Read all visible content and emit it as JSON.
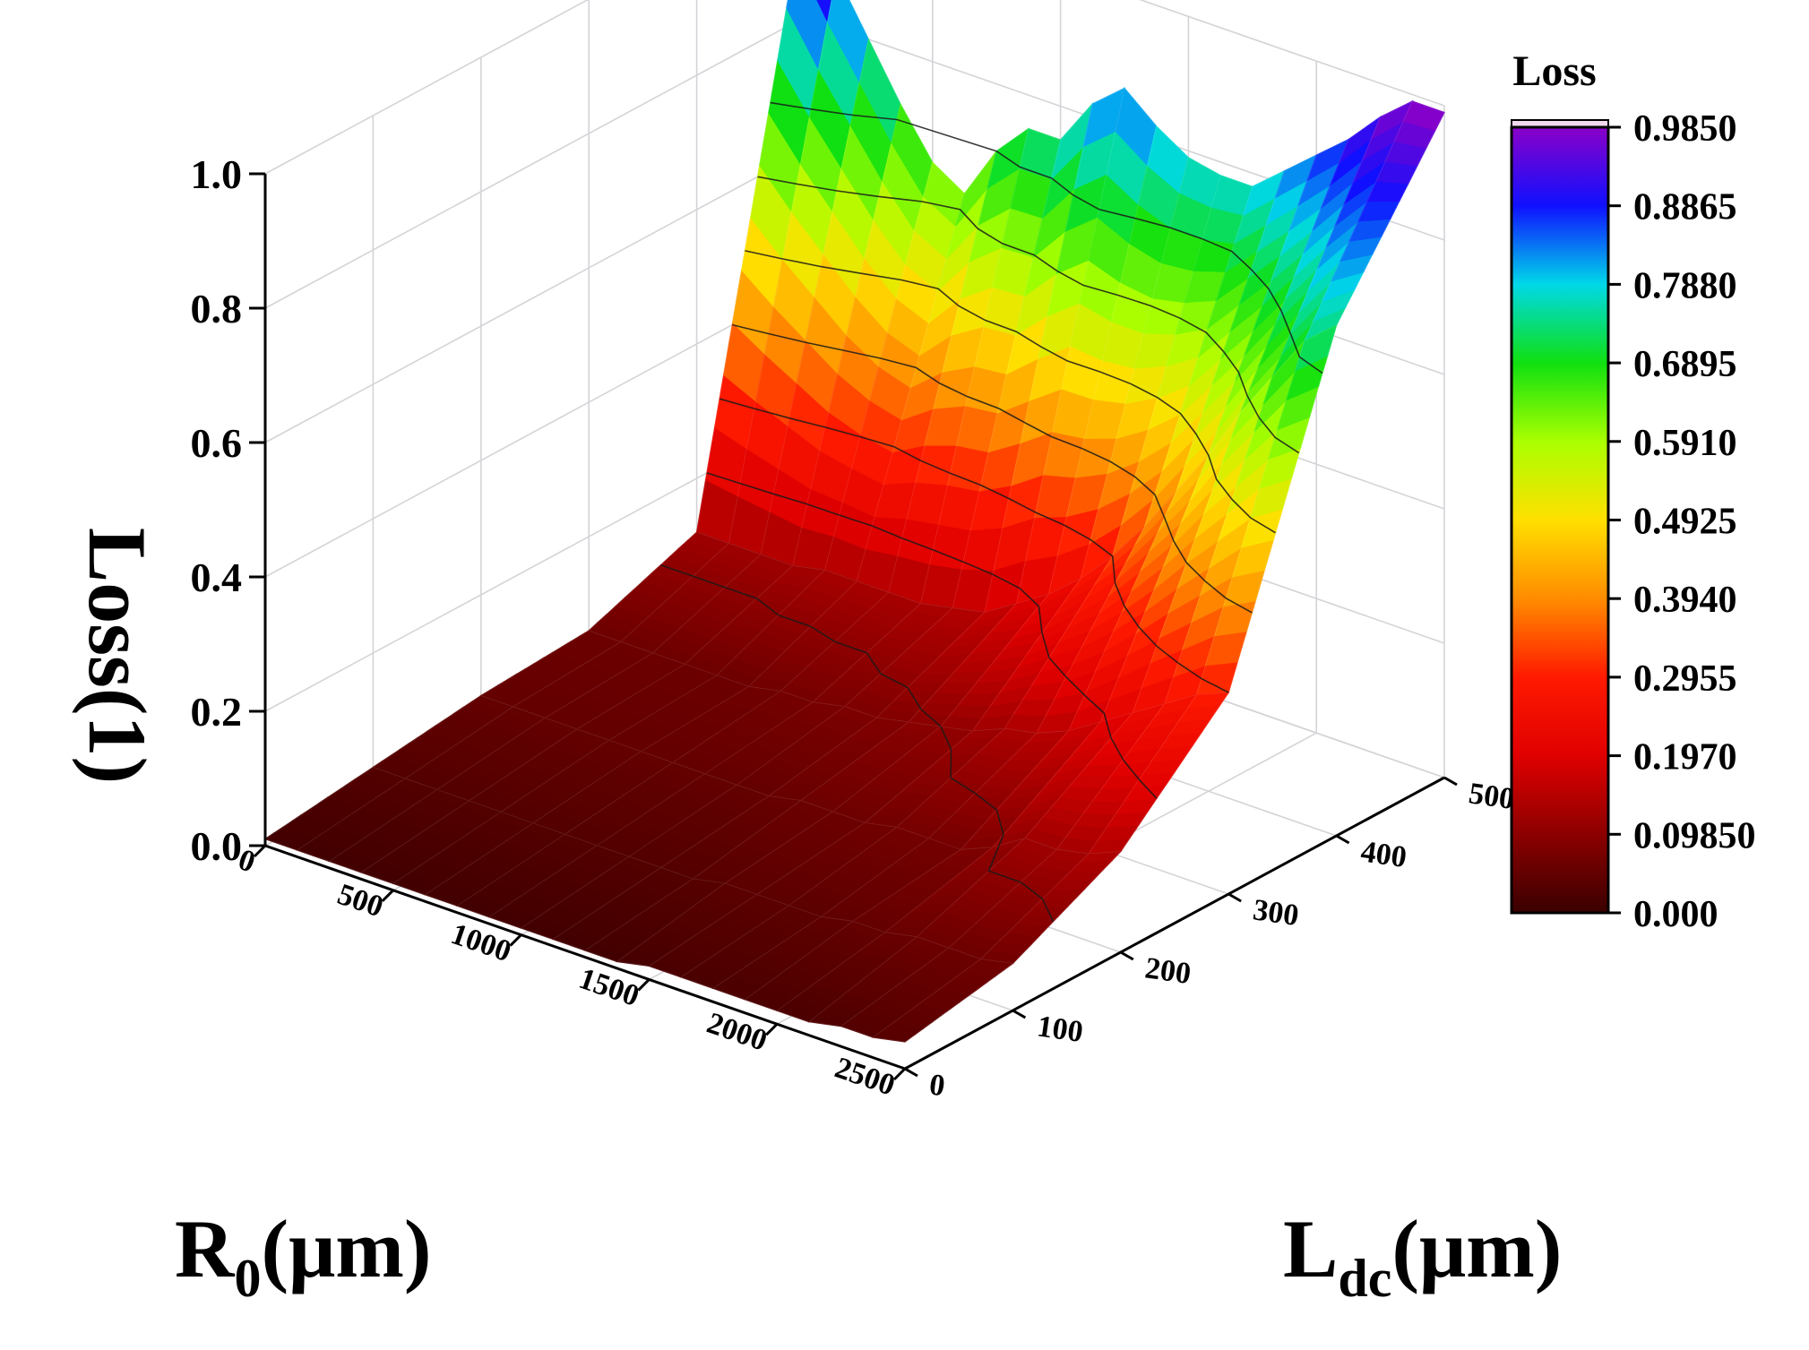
{
  "chart_data": {
    "type": "surface3d",
    "title": "",
    "z_axis": {
      "label": "Loss(1)",
      "range": [
        0,
        1.0
      ],
      "ticks": [
        "0.0",
        "0.2",
        "0.4",
        "0.6",
        "0.8",
        "1.0"
      ]
    },
    "x_axis": {
      "label_main": "R",
      "label_sub": "0",
      "label_unit": "(μm)",
      "range": [
        0,
        2500
      ],
      "ticks": [
        "0",
        "500",
        "1000",
        "1500",
        "2000",
        "2500"
      ]
    },
    "y_axis": {
      "label_main": "L",
      "label_sub": "dc",
      "label_unit": "(μm)",
      "range": [
        0,
        500
      ],
      "ticks": [
        "0",
        "100",
        "200",
        "300",
        "400",
        "500"
      ]
    },
    "colorbar": {
      "title": "Loss",
      "ticks": [
        "0.9850",
        "0.8865",
        "0.7880",
        "0.6895",
        "0.5910",
        "0.4925",
        "0.3940",
        "0.2955",
        "0.1970",
        "0.09850",
        "0.000"
      ],
      "tick_values": [
        0.985,
        0.8865,
        0.788,
        0.6895,
        0.591,
        0.4925,
        0.394,
        0.2955,
        0.197,
        0.0985,
        0.0
      ],
      "range": [
        0,
        0.985
      ]
    },
    "contour_levels": [
      0.1,
      0.2,
      0.3,
      0.4,
      0.5,
      0.6,
      0.7
    ],
    "colors": {
      "stops": [
        [
          0.0,
          "#3a0000"
        ],
        [
          0.1,
          "#8c0000"
        ],
        [
          0.2,
          "#e00000"
        ],
        [
          0.3,
          "#ff1a00"
        ],
        [
          0.4,
          "#ff8c00"
        ],
        [
          0.5,
          "#ffe000"
        ],
        [
          0.6,
          "#aaff00"
        ],
        [
          0.7,
          "#10e010"
        ],
        [
          0.8,
          "#00d8e8"
        ],
        [
          0.9,
          "#1010ff"
        ],
        [
          1.0,
          "#8a00c8"
        ]
      ],
      "grid": "#d4d4d8",
      "axis": "#000000"
    },
    "surface": {
      "r_values": [
        0,
        125,
        250,
        375,
        500,
        625,
        750,
        875,
        1000,
        1125,
        1250,
        1375,
        1500,
        1625,
        1750,
        1875,
        2000,
        2125,
        2250,
        2375,
        2500
      ],
      "ldc_values": [
        0,
        100,
        200,
        300,
        400,
        500
      ],
      "loss_at_ldc500": [
        0.97,
        0.88,
        0.8,
        0.72,
        0.65,
        0.62,
        0.7,
        0.75,
        0.75,
        0.82,
        0.86,
        0.82,
        0.79,
        0.78,
        0.78,
        0.82,
        0.86,
        0.9,
        0.95,
        0.99,
        0.99
      ],
      "loss_at_ldc400": [
        0.12,
        0.12,
        0.12,
        0.12,
        0.13,
        0.13,
        0.13,
        0.13,
        0.14,
        0.15,
        0.18,
        0.21,
        0.25,
        0.3,
        0.36,
        0.43,
        0.5,
        0.58,
        0.65,
        0.72,
        0.76
      ],
      "loss_at_ldc300": [
        0.06,
        0.06,
        0.06,
        0.06,
        0.06,
        0.06,
        0.07,
        0.07,
        0.08,
        0.08,
        0.09,
        0.1,
        0.11,
        0.13,
        0.14,
        0.16,
        0.19,
        0.22,
        0.25,
        0.28,
        0.3
      ],
      "loss_at_ldc200": [
        0.05,
        0.05,
        0.05,
        0.05,
        0.05,
        0.05,
        0.05,
        0.05,
        0.05,
        0.05,
        0.06,
        0.06,
        0.06,
        0.07,
        0.07,
        0.07,
        0.09,
        0.12,
        0.12,
        0.13,
        0.15
      ],
      "loss_at_ldc100": [
        0.03,
        0.03,
        0.03,
        0.03,
        0.03,
        0.03,
        0.03,
        0.03,
        0.03,
        0.03,
        0.03,
        0.04,
        0.04,
        0.04,
        0.04,
        0.05,
        0.05,
        0.06,
        0.06,
        0.06,
        0.07
      ],
      "loss_at_ldc0": [
        0.01,
        0.01,
        0.01,
        0.01,
        0.01,
        0.01,
        0.01,
        0.01,
        0.01,
        0.01,
        0.01,
        0.01,
        0.02,
        0.02,
        0.02,
        0.02,
        0.02,
        0.02,
        0.03,
        0.03,
        0.04
      ]
    }
  }
}
